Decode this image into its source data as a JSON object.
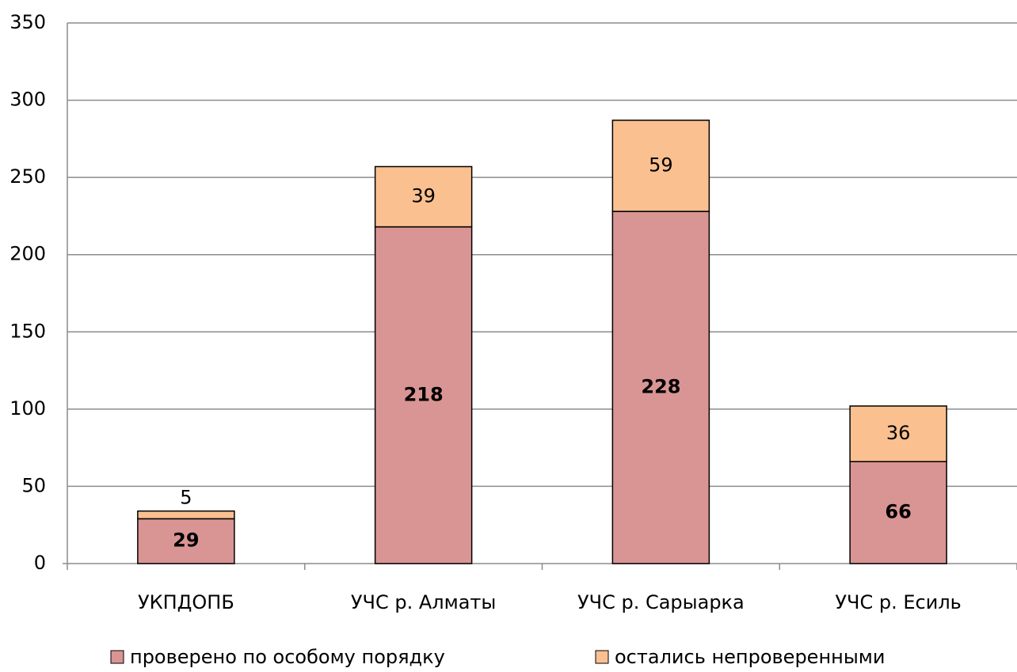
{
  "chart_data": {
    "type": "stacked_bar",
    "categories": [
      "УКПДОПБ",
      "УЧС р. Алматы",
      "УЧС р. Сарыарка",
      "УЧС р. Есиль"
    ],
    "series": [
      {
        "name": "проверено по особому порядку",
        "color": "#d99594",
        "values": [
          29,
          218,
          228,
          66
        ]
      },
      {
        "name": "остались непроверенными",
        "color": "#fac090",
        "values": [
          5,
          39,
          59,
          36
        ]
      }
    ],
    "ylim": [
      0,
      350
    ],
    "yticks": [
      0,
      50,
      100,
      150,
      200,
      250,
      300,
      350
    ],
    "grid": true,
    "legend": "bottom"
  }
}
